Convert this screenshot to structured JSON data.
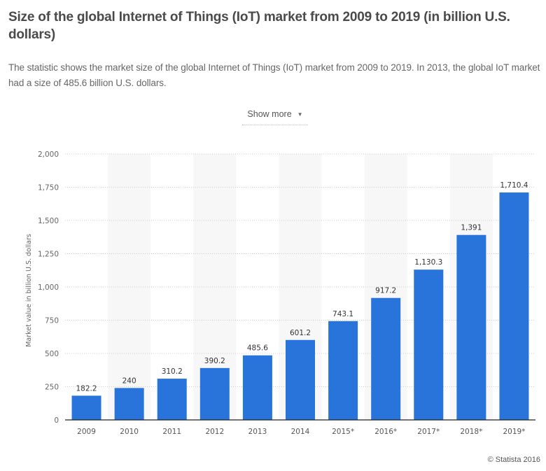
{
  "header": {
    "title": "Size of the global Internet of Things (IoT) market from 2009 to 2019 (in billion U.S. dollars)",
    "description": "The statistic shows the market size of the global Internet of Things (IoT) market from 2009 to 2019. In 2013, the global IoT market had a size of 485.6 billion U.S. dollars.",
    "show_more_label": "Show more",
    "show_more_icon": "caret-down-icon"
  },
  "footer": {
    "credit": "© Statista 2016"
  },
  "colors": {
    "bar": "#2874db",
    "band": "#f7f7f7",
    "grid": "#cccccc",
    "axis": "#222222"
  },
  "chart_data": {
    "type": "bar",
    "title": "Size of the global Internet of Things (IoT) market from 2009 to 2019 (in billion U.S. dollars)",
    "xlabel": "",
    "ylabel": "Market value in billion U.S. dollars",
    "categories": [
      "2009",
      "2010",
      "2011",
      "2012",
      "2013",
      "2014",
      "2015*",
      "2016*",
      "2017*",
      "2018*",
      "2019*"
    ],
    "values": [
      182.2,
      240,
      310.2,
      390.2,
      485.6,
      601.2,
      743.1,
      917.2,
      1130.3,
      1391,
      1710.4
    ],
    "data_labels": [
      "182.2",
      "240",
      "310.2",
      "390.2",
      "485.6",
      "601.2",
      "743.1",
      "917.2",
      "1,130.3",
      "1,391",
      "1,710.4"
    ],
    "ylim": [
      0,
      2000
    ],
    "yticks": [
      0,
      250,
      500,
      750,
      1000,
      1250,
      1500,
      1750,
      2000
    ],
    "ytick_labels": [
      "0",
      "250",
      "500",
      "750",
      "1,000",
      "1,250",
      "1,500",
      "1,750",
      "2,000"
    ],
    "grid": true,
    "legend": "none"
  }
}
